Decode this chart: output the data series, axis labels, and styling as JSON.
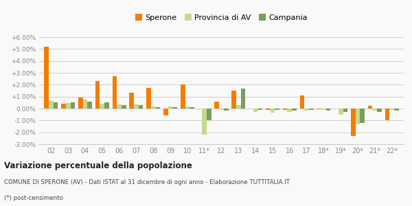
{
  "years": [
    "02",
    "03",
    "04",
    "05",
    "06",
    "07",
    "08",
    "09",
    "10",
    "11*",
    "12",
    "13",
    "14",
    "15",
    "16",
    "17",
    "18*",
    "19*",
    "20*",
    "21*",
    "22*"
  ],
  "sperone": [
    0.052,
    0.004,
    0.009,
    0.023,
    0.027,
    0.013,
    0.0175,
    -0.0055,
    0.02,
    0.0,
    0.006,
    0.015,
    0.0,
    -0.001,
    -0.001,
    0.011,
    -0.0005,
    0.0,
    -0.023,
    0.0025,
    -0.01
  ],
  "provincia_av": [
    0.0065,
    0.0045,
    0.0075,
    0.004,
    0.0035,
    0.0035,
    0.002,
    0.0015,
    0.0015,
    -0.022,
    -0.001,
    0.003,
    -0.003,
    -0.0035,
    -0.003,
    -0.002,
    -0.001,
    -0.005,
    -0.013,
    -0.002,
    -0.001
  ],
  "campania": [
    0.005,
    0.005,
    0.0055,
    0.005,
    0.003,
    0.003,
    0.001,
    0.001,
    0.001,
    -0.01,
    -0.002,
    0.017,
    -0.001,
    -0.001,
    -0.002,
    -0.001,
    -0.002,
    -0.003,
    -0.012,
    -0.003,
    -0.002
  ],
  "color_sperone": "#f57c00",
  "color_provincia": "#c5d98d",
  "color_campania": "#7a9e5e",
  "background": "#f9f9f9",
  "grid_color": "#cccccc",
  "title1": "Variazione percentuale della popolazione",
  "subtitle": "COMUNE DI SPERONE (AV) - Dati ISTAT al 31 dicembre di ogni anno - Elaborazione TUTTITALIA.IT",
  "footnote": "(*) post-censimento",
  "ylim_min": -0.03,
  "ylim_max": 0.06,
  "ytick_vals": [
    -0.03,
    -0.02,
    -0.01,
    0.0,
    0.01,
    0.02,
    0.03,
    0.04,
    0.05,
    0.06
  ],
  "ytick_labels": [
    "-3.00%",
    "-2.00%",
    "-1.00%",
    "0.00%",
    "+1.00%",
    "+2.00%",
    "+3.00%",
    "+4.00%",
    "+5.00%",
    "+6.00%"
  ],
  "bar_width": 0.27,
  "legend_labels": [
    "Sperone",
    "Provincia di AV",
    "Campania"
  ]
}
